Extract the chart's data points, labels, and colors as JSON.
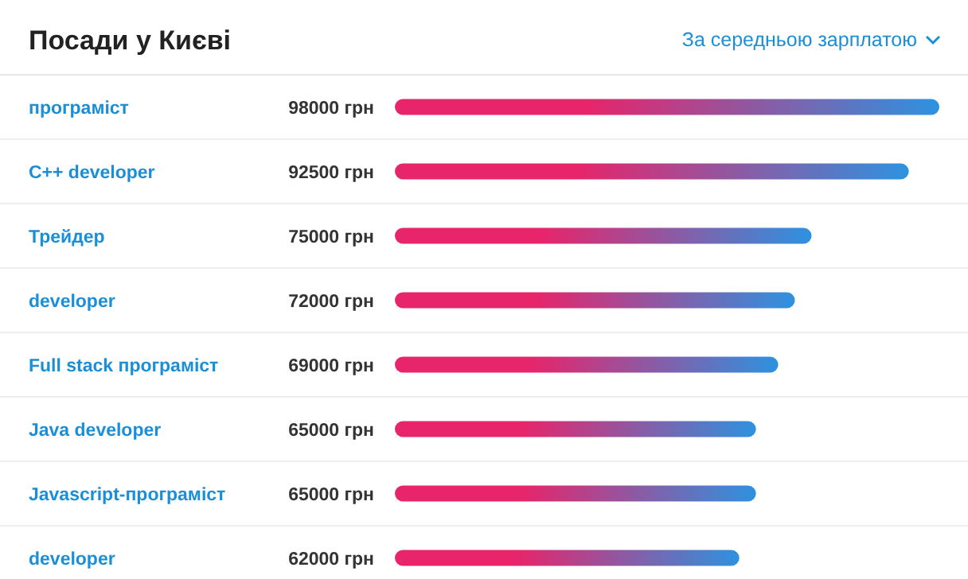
{
  "chart_data": {
    "type": "bar",
    "orientation": "horizontal",
    "title": "Посади у Києві",
    "annotations": [
      "За середньою зарплатою"
    ],
    "categories": [
      "програміст",
      "C++ developer",
      "Трейдер",
      "developer",
      "Full stack програміст",
      "Java developer",
      "Javascript-програміст",
      "developer"
    ],
    "series": [
      {
        "color": "#e8246a",
        "values": [
          98000,
          92500,
          75000,
          72000,
          69000,
          65000,
          65000,
          62000
        ],
        "value_labels": [
          "98000 грн",
          "92500 грн",
          "75000 грн",
          "72000 грн",
          "69000 грн",
          "65000 грн",
          "65000 грн",
          "62000 грн"
        ]
      }
    ]
  }
}
